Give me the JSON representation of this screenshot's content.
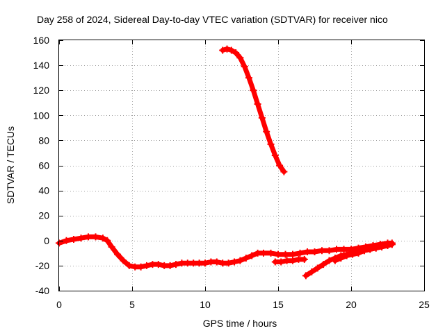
{
  "chart_data": {
    "type": "scatter",
    "title": "Day 258 of 2024, Sidereal Day-to-day VTEC variation (SDTVAR) for receiver nico",
    "xlabel": "GPS time / hours",
    "ylabel": "SDTVAR / TECUs",
    "xlim": [
      0,
      25
    ],
    "ylim": [
      -40,
      160
    ],
    "xticks": [
      0,
      5,
      10,
      15,
      20,
      25
    ],
    "yticks": [
      -40,
      -20,
      0,
      20,
      40,
      60,
      80,
      100,
      120,
      140,
      160
    ],
    "grid": true,
    "series_color": "#ff0000",
    "marker": "+",
    "series": [
      {
        "name": "main",
        "x": [
          0,
          0.5,
          1,
          1.5,
          2,
          2.5,
          3,
          3.3,
          3.6,
          4,
          4.4,
          4.8,
          5.2,
          5.6,
          6,
          6.4,
          6.8,
          7.2,
          7.6,
          8,
          8.4,
          8.8,
          9.2,
          9.6,
          10,
          10.4,
          10.8,
          11.2,
          11.6,
          12,
          12.4,
          12.8,
          13.2,
          13.6,
          14,
          14.5,
          15,
          15.5,
          16,
          16.5,
          17,
          17.5,
          18,
          18.5,
          19,
          19.5,
          20,
          20.5,
          21,
          21.5,
          22,
          22.5,
          22.8
        ],
        "y": [
          -2,
          0,
          1,
          2,
          3,
          3,
          2,
          0,
          -5,
          -11,
          -16,
          -20,
          -21,
          -21,
          -20,
          -19,
          -19,
          -20,
          -20,
          -19,
          -18,
          -18,
          -18,
          -18,
          -18,
          -17,
          -17,
          -18,
          -18,
          -17,
          -16,
          -14,
          -12,
          -10,
          -10,
          -10,
          -11,
          -11,
          -11,
          -10,
          -9,
          -9,
          -8,
          -8,
          -7,
          -7,
          -7,
          -6,
          -5,
          -4,
          -3,
          -2,
          -2
        ]
      },
      {
        "name": "high-arc",
        "x": [
          11.2,
          11.5,
          11.8,
          12.1,
          12.4,
          12.7,
          13,
          13.3,
          13.6,
          13.9,
          14.2,
          14.5,
          14.8,
          15.1,
          15.4
        ],
        "y": [
          152,
          153,
          152,
          150,
          146,
          139,
          130,
          120,
          109,
          98,
          87,
          77,
          68,
          60,
          55
        ]
      },
      {
        "name": "rising-tail-a",
        "x": [
          16.9,
          17.3,
          17.7,
          18.1,
          18.5,
          18.9,
          19.3,
          19.7,
          20.1,
          20.5,
          20.9,
          21.3,
          21.7,
          22.1,
          22.5,
          22.8
        ],
        "y": [
          -28,
          -25,
          -22,
          -19,
          -16,
          -14,
          -12,
          -11,
          -10,
          -9,
          -8,
          -7,
          -6,
          -5,
          -4,
          -3
        ]
      },
      {
        "name": "rising-tail-b",
        "x": [
          18.9,
          19.3,
          19.7,
          20.1,
          20.5,
          20.9,
          21.3,
          21.7,
          22.1,
          22.5,
          22.8
        ],
        "y": [
          -16,
          -14,
          -12,
          -11,
          -10,
          -8,
          -7,
          -6,
          -5,
          -4,
          -3
        ]
      },
      {
        "name": "offset-segment",
        "x": [
          14.8,
          15.2,
          15.6,
          16,
          16.4,
          16.8
        ],
        "y": [
          -17,
          -17,
          -16,
          -16,
          -15,
          -15
        ]
      }
    ]
  }
}
